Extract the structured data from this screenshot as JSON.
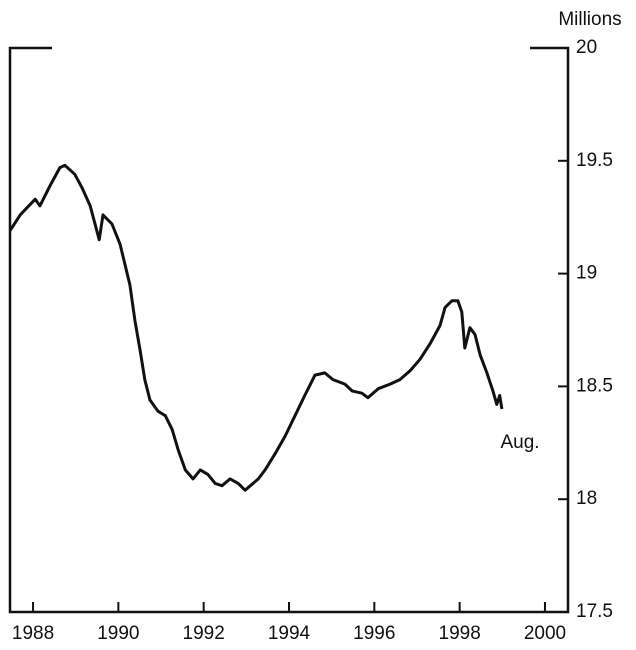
{
  "chart_data": {
    "type": "line",
    "y_axis_label": "Millions",
    "annotation": "Aug.",
    "x": [
      1987.46,
      1987.7,
      1988.05,
      1988.16,
      1988.4,
      1988.63,
      1988.75,
      1988.98,
      1989.15,
      1989.34,
      1989.55,
      1989.64,
      1989.85,
      1990.04,
      1990.27,
      1990.39,
      1990.51,
      1990.62,
      1990.74,
      1990.93,
      1991.1,
      1991.26,
      1991.4,
      1991.57,
      1991.75,
      1991.92,
      1992.1,
      1992.27,
      1992.43,
      1992.62,
      1992.81,
      1992.97,
      1993.28,
      1993.44,
      1993.67,
      1993.91,
      1994.14,
      1994.37,
      1994.61,
      1994.84,
      1995.03,
      1995.31,
      1995.48,
      1995.71,
      1995.85,
      1996.09,
      1996.37,
      1996.6,
      1996.84,
      1997.07,
      1997.31,
      1997.54,
      1997.66,
      1997.82,
      1997.96,
      1998.05,
      1998.12,
      1998.24,
      1998.36,
      1998.48,
      1998.64,
      1998.78,
      1998.87,
      1998.94,
      1998.99
    ],
    "values": [
      19.19,
      19.26,
      19.33,
      19.3,
      19.39,
      19.47,
      19.48,
      19.44,
      19.38,
      19.3,
      19.15,
      19.26,
      19.22,
      19.13,
      18.95,
      18.79,
      18.66,
      18.53,
      18.44,
      18.39,
      18.37,
      18.31,
      18.22,
      18.13,
      18.09,
      18.13,
      18.11,
      18.07,
      18.06,
      18.09,
      18.07,
      18.04,
      18.09,
      18.13,
      18.2,
      18.28,
      18.37,
      18.46,
      18.55,
      18.56,
      18.53,
      18.51,
      18.48,
      18.47,
      18.45,
      18.49,
      18.51,
      18.53,
      18.57,
      18.62,
      18.69,
      18.77,
      18.85,
      18.88,
      18.88,
      18.83,
      18.67,
      18.76,
      18.73,
      18.64,
      18.56,
      18.48,
      18.42,
      18.46,
      18.4
    ],
    "color": "#111111",
    "xlim": [
      1987.46,
      2000.54
    ],
    "xticks": [
      1988,
      1990,
      1992,
      1994,
      1996,
      1998,
      2000
    ],
    "ylim": [
      17.5,
      20
    ],
    "yticks": [
      17.5,
      18,
      18.5,
      19,
      19.5,
      20
    ],
    "y_axis_side": "right"
  }
}
